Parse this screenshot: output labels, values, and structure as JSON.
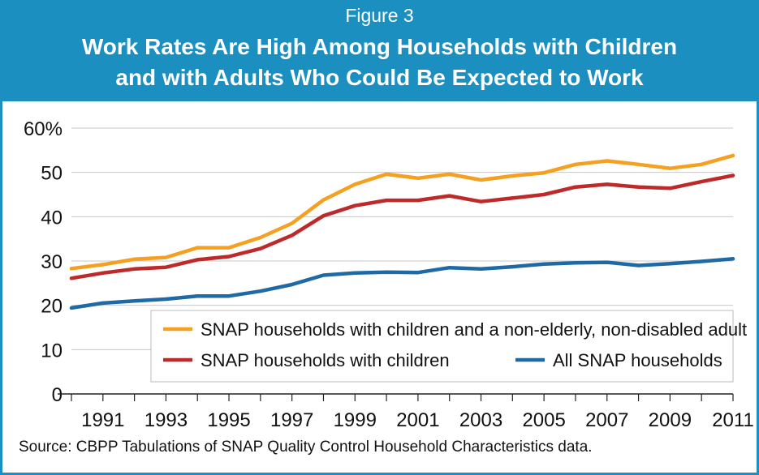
{
  "header": {
    "figure_label": "Figure 3",
    "title_line1": "Work Rates Are High Among Households with Children",
    "title_line2": "and with Adults Who Could Be Expected to Work"
  },
  "source": "Source: CBPP Tabulations of SNAP Quality Control Household Characteristics data.",
  "colors": {
    "frame": "#1a8fc0",
    "grid": "#c8c8c8"
  },
  "chart_data": {
    "type": "line",
    "x": [
      1990,
      1991,
      1992,
      1993,
      1994,
      1995,
      1996,
      1997,
      1998,
      1999,
      2000,
      2001,
      2002,
      2003,
      2004,
      2005,
      2006,
      2007,
      2008,
      2009,
      2010,
      2011
    ],
    "x_tick_labels": [
      "1991",
      "1993",
      "1995",
      "1997",
      "1999",
      "2001",
      "2003",
      "2005",
      "2007",
      "2009",
      "2011"
    ],
    "y_tick_labels": [
      "60%",
      "50",
      "40",
      "30",
      "20",
      "10",
      "0"
    ],
    "ylim": [
      0,
      60
    ],
    "grid": true,
    "legend_placement": "lower-right",
    "series": [
      {
        "name": "SNAP households with children and a non-elderly, non-disabled adult",
        "color": "#f5a020",
        "values": [
          28.3,
          29.2,
          30.4,
          30.8,
          33.0,
          33.0,
          35.3,
          38.5,
          43.8,
          47.3,
          49.6,
          48.7,
          49.6,
          48.3,
          49.2,
          49.9,
          51.8,
          52.6,
          51.8,
          50.9,
          51.8,
          53.8
        ]
      },
      {
        "name": "SNAP households with children",
        "color": "#be2a2a",
        "values": [
          26.1,
          27.3,
          28.2,
          28.6,
          30.3,
          31.0,
          32.8,
          35.8,
          40.2,
          42.5,
          43.7,
          43.7,
          44.7,
          43.4,
          44.2,
          45.0,
          46.7,
          47.3,
          46.7,
          46.4,
          47.9,
          49.3
        ]
      },
      {
        "name": "All SNAP households",
        "color": "#1f6aa5",
        "values": [
          19.4,
          20.5,
          21.0,
          21.4,
          22.1,
          22.1,
          23.2,
          24.7,
          26.8,
          27.3,
          27.5,
          27.4,
          28.5,
          28.2,
          28.7,
          29.3,
          29.6,
          29.7,
          29.0,
          29.4,
          29.9,
          30.5
        ]
      }
    ]
  }
}
